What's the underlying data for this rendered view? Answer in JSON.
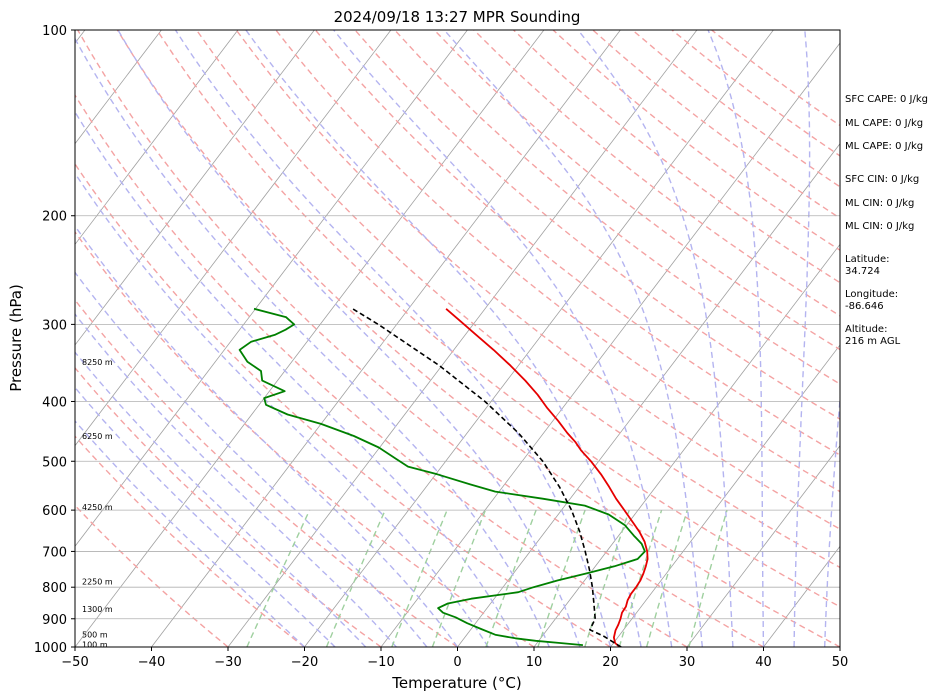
{
  "chart_data": {
    "type": "line",
    "title": "2024/09/18 13:27 MPR Sounding",
    "xlabel": "Temperature (°C)",
    "ylabel": "Pressure (hPa)",
    "xlim": [
      -50,
      50
    ],
    "ylim": [
      1000,
      100
    ],
    "y_scale": "log",
    "skew_T": true,
    "grid": true,
    "x_ticks": [
      "−50",
      "−40",
      "−30",
      "−20",
      "−10",
      "0",
      "10",
      "20",
      "30",
      "40",
      "50"
    ],
    "x_tick_values": [
      -50,
      -40,
      -30,
      -20,
      -10,
      0,
      10,
      20,
      30,
      40,
      50
    ],
    "y_ticks": [
      "100",
      "200",
      "300",
      "400",
      "500",
      "600",
      "700",
      "800",
      "900",
      "1000"
    ],
    "y_tick_values": [
      100,
      200,
      300,
      400,
      500,
      600,
      700,
      800,
      900,
      1000
    ],
    "colors": {
      "temperature": "#e60000",
      "dewpoint": "#008000",
      "parcel": "#000000",
      "isotherm": "#a0a0a0",
      "dry_adiabat": "#f4a3a3",
      "moist_adiabat": "#b4b4f0",
      "mixing_ratio": "#9fd09f"
    },
    "height_labels": [
      {
        "text": "100 m",
        "p": 990
      },
      {
        "text": "500 m",
        "p": 955
      },
      {
        "text": "1300 m",
        "p": 868
      },
      {
        "text": "2250 m",
        "p": 783
      },
      {
        "text": "4250 m",
        "p": 593
      },
      {
        "text": "6250 m",
        "p": 455
      },
      {
        "text": "8250 m",
        "p": 345
      }
    ],
    "series": [
      {
        "key": "temperature",
        "points": [
          [
            1000,
            21.2
          ],
          [
            985,
            20.2
          ],
          [
            965,
            19.5
          ],
          [
            940,
            19.0
          ],
          [
            920,
            18.8
          ],
          [
            900,
            18.5
          ],
          [
            880,
            18.1
          ],
          [
            860,
            18.0
          ],
          [
            840,
            17.6
          ],
          [
            820,
            17.4
          ],
          [
            800,
            17.4
          ],
          [
            780,
            17.3
          ],
          [
            760,
            17.0
          ],
          [
            740,
            16.6
          ],
          [
            720,
            16.1
          ],
          [
            700,
            15.3
          ],
          [
            675,
            14.0
          ],
          [
            650,
            12.3
          ],
          [
            625,
            10.3
          ],
          [
            600,
            8.2
          ],
          [
            575,
            6.0
          ],
          [
            550,
            3.9
          ],
          [
            525,
            1.6
          ],
          [
            500,
            -1.0
          ],
          [
            480,
            -3.4
          ],
          [
            465,
            -5.0
          ],
          [
            450,
            -6.9
          ],
          [
            430,
            -9.3
          ],
          [
            410,
            -12.0
          ],
          [
            390,
            -14.6
          ],
          [
            370,
            -17.6
          ],
          [
            350,
            -21.0
          ],
          [
            330,
            -24.8
          ],
          [
            310,
            -29.0
          ],
          [
            295,
            -32.3
          ],
          [
            283,
            -35.1
          ]
        ]
      },
      {
        "key": "dewpoint",
        "points": [
          [
            993,
            16.2
          ],
          [
            985,
            13.0
          ],
          [
            977,
            9.6
          ],
          [
            968,
            6.7
          ],
          [
            955,
            3.7
          ],
          [
            935,
            1.3
          ],
          [
            915,
            -1.1
          ],
          [
            895,
            -3.2
          ],
          [
            880,
            -5.3
          ],
          [
            865,
            -6.4
          ],
          [
            850,
            -5.6
          ],
          [
            835,
            -3.0
          ],
          [
            815,
            2.5
          ],
          [
            800,
            4.0
          ],
          [
            780,
            6.5
          ],
          [
            760,
            9.5
          ],
          [
            740,
            12.5
          ],
          [
            720,
            14.8
          ],
          [
            700,
            15.0
          ],
          [
            680,
            13.8
          ],
          [
            660,
            12.0
          ],
          [
            635,
            9.8
          ],
          [
            610,
            6.6
          ],
          [
            590,
            2.6
          ],
          [
            575,
            -3.6
          ],
          [
            560,
            -10.5
          ],
          [
            545,
            -14.5
          ],
          [
            525,
            -19.8
          ],
          [
            510,
            -24.4
          ],
          [
            495,
            -26.8
          ],
          [
            475,
            -30.1
          ],
          [
            455,
            -34.5
          ],
          [
            435,
            -40.0
          ],
          [
            420,
            -45.3
          ],
          [
            405,
            -49.1
          ],
          [
            395,
            -50.0
          ],
          [
            385,
            -48.0
          ],
          [
            370,
            -52.0
          ],
          [
            357,
            -53.1
          ],
          [
            345,
            -55.8
          ],
          [
            330,
            -58.0
          ],
          [
            320,
            -57.3
          ],
          [
            312,
            -54.9
          ],
          [
            306,
            -54.0
          ],
          [
            300,
            -53.4
          ],
          [
            292,
            -55.2
          ],
          [
            283,
            -60.2
          ]
        ]
      },
      {
        "key": "parcel",
        "points": [
          [
            1000,
            21.4
          ],
          [
            960,
            18.0
          ],
          [
            938,
            15.6
          ],
          [
            900,
            15.2
          ],
          [
            850,
            13.5
          ],
          [
            800,
            11.7
          ],
          [
            750,
            9.6
          ],
          [
            700,
            7.2
          ],
          [
            650,
            4.5
          ],
          [
            600,
            1.3
          ],
          [
            550,
            -2.6
          ],
          [
            500,
            -7.3
          ],
          [
            450,
            -13.3
          ],
          [
            400,
            -20.8
          ],
          [
            350,
            -30.3
          ],
          [
            300,
            -42.4
          ],
          [
            283,
            -47.3
          ]
        ]
      }
    ],
    "annotations": {
      "sfc_cape": "SFC CAPE: 0 J/kg",
      "ml_cape_1": "ML CAPE: 0 J/kg",
      "ml_cape_2": "ML CAPE: 0 J/kg",
      "sfc_cin": "SFC CIN: 0 J/kg",
      "ml_cin_1": "ML CIN: 0 J/kg",
      "ml_cin_2": "ML CIN: 0 J/kg",
      "latitude_label": "Latitude:",
      "latitude_value": "34.724",
      "longitude_label": "Longitude:",
      "longitude_value": "-86.646",
      "altitude_label": "Altitude:",
      "altitude_value": "216 m AGL"
    }
  }
}
